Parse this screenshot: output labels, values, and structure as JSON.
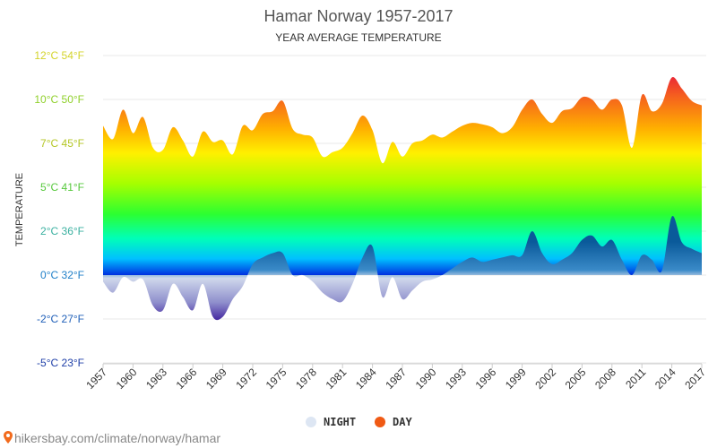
{
  "chart_data": {
    "type": "area",
    "title": "Hamar Norway 1957-2017",
    "subtitle": "YEAR AVERAGE TEMPERATURE",
    "ylabel": "TEMPERATURE",
    "ylim": [
      -5,
      12
    ],
    "yticks": [
      {
        "value": 12,
        "label": "12°C 54°F",
        "color": "#d4d42c"
      },
      {
        "value": 10,
        "label": "10°C 50°F",
        "color": "#8fd02a"
      },
      {
        "value": 7,
        "label": "7°C 45°F",
        "color": "#b4c624"
      },
      {
        "value": 5,
        "label": "5°C 41°F",
        "color": "#56c83c"
      },
      {
        "value": 2,
        "label": "2°C 36°F",
        "color": "#3ab0a0"
      },
      {
        "value": 0,
        "label": "0°C 32°F",
        "color": "#1f7fc8"
      },
      {
        "value": -2,
        "label": "-2°C 27°F",
        "color": "#1f5fb8"
      },
      {
        "value": -5,
        "label": "-5°C 23°F",
        "color": "#1f3fa8"
      }
    ],
    "xtick_labels": [
      "1957",
      "1960",
      "1963",
      "1966",
      "1969",
      "1972",
      "1975",
      "1978",
      "1981",
      "1984",
      "1987",
      "1990",
      "1993",
      "1996",
      "1999",
      "2002",
      "2005",
      "2008",
      "2011",
      "2014",
      "2017"
    ],
    "x": [
      1957,
      1958,
      1959,
      1960,
      1961,
      1962,
      1963,
      1964,
      1965,
      1966,
      1967,
      1968,
      1969,
      1970,
      1971,
      1972,
      1973,
      1974,
      1975,
      1976,
      1977,
      1978,
      1979,
      1980,
      1981,
      1982,
      1983,
      1984,
      1985,
      1986,
      1987,
      1988,
      1989,
      1990,
      1991,
      1992,
      1993,
      1994,
      1995,
      1996,
      1997,
      1998,
      1999,
      2000,
      2001,
      2002,
      2003,
      2004,
      2005,
      2006,
      2007,
      2008,
      2009,
      2010,
      2011,
      2012,
      2013,
      2014,
      2015,
      2016,
      2017
    ],
    "series": [
      {
        "name": "DAY",
        "values": [
          8.2,
          7.3,
          9.3,
          7.7,
          8.8,
          6.8,
          6.7,
          8.1,
          7.2,
          6.4,
          7.8,
          7.1,
          7.2,
          6.5,
          8.2,
          7.9,
          9.0,
          9.2,
          9.9,
          8.0,
          7.6,
          7.4,
          6.4,
          6.6,
          6.8,
          7.7,
          8.9,
          7.9,
          6.1,
          7.1,
          6.4,
          7.0,
          7.2,
          7.6,
          7.4,
          7.8,
          8.2,
          8.4,
          8.3,
          8.1,
          7.7,
          8.1,
          9.3,
          10.0,
          9.0,
          8.4,
          9.2,
          9.4,
          10.1,
          10.0,
          9.3,
          10.0,
          9.6,
          6.8,
          10.2,
          9.2,
          9.7,
          11.0,
          10.5,
          9.9,
          9.6
        ]
      },
      {
        "name": "NIGHT",
        "values": [
          -0.3,
          -0.8,
          -0.1,
          -0.3,
          -0.2,
          -1.4,
          -1.6,
          -0.4,
          -1.0,
          -1.6,
          -0.4,
          -1.9,
          -1.9,
          -1.1,
          -0.5,
          0.5,
          0.8,
          1.0,
          1.0,
          0.0,
          0.0,
          -0.3,
          -0.8,
          -1.1,
          -1.2,
          -0.4,
          0.8,
          1.3,
          -1.0,
          -0.1,
          -1.1,
          -0.7,
          -0.3,
          -0.2,
          0.0,
          0.3,
          0.6,
          0.8,
          0.6,
          0.7,
          0.8,
          0.9,
          0.9,
          2.0,
          1.0,
          0.5,
          0.7,
          1.0,
          1.6,
          1.8,
          1.3,
          1.6,
          0.7,
          0.0,
          0.9,
          0.7,
          0.2,
          3.0,
          1.5,
          1.2,
          1.0
        ]
      }
    ],
    "legend": {
      "placement": "bottom-center",
      "items": [
        {
          "label": "NIGHT",
          "color": "#dde6f3"
        },
        {
          "label": "DAY",
          "color": "#f05a14"
        }
      ]
    },
    "grid": true
  },
  "source": {
    "text": "hikersbay.com/climate/norway/hamar",
    "icon": "pin-icon",
    "color": "#888888"
  }
}
